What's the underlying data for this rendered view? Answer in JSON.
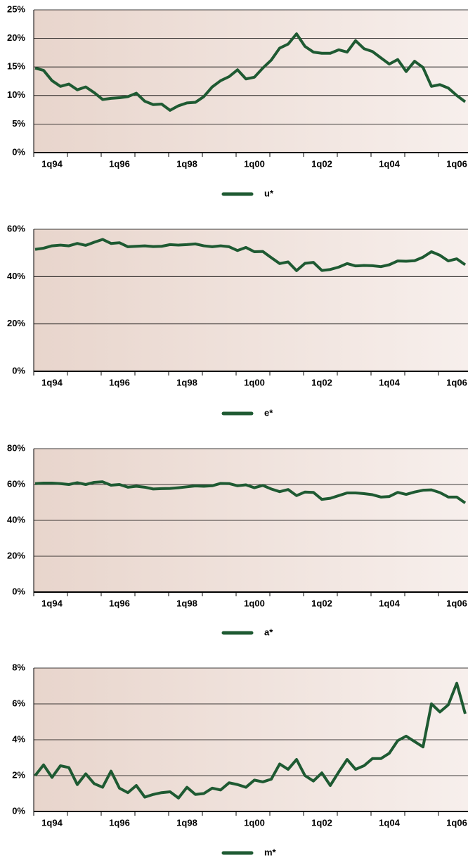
{
  "chart_data": [
    {
      "type": "line",
      "categories": [
        null,
        null,
        "1q94",
        null,
        null,
        null,
        null,
        null,
        null,
        null,
        "1q96",
        null,
        null,
        null,
        null,
        null,
        null,
        null,
        "1q98",
        null,
        null,
        null,
        null,
        null,
        null,
        null,
        "1q00",
        null,
        null,
        null,
        null,
        null,
        null,
        null,
        "1q02",
        null,
        null,
        null,
        null,
        null,
        null,
        null,
        "1q04",
        null,
        null,
        null,
        null,
        null,
        null,
        null,
        "1q06",
        null
      ],
      "series": [
        {
          "name": "u*",
          "color": "#1e5a32",
          "values": [
            14.8,
            14.4,
            12.6,
            11.6,
            12.0,
            11.0,
            11.5,
            10.5,
            9.3,
            9.5,
            9.6,
            9.8,
            10.4,
            9.0,
            8.4,
            8.5,
            7.4,
            8.2,
            8.7,
            8.8,
            9.8,
            11.5,
            12.6,
            13.3,
            14.5,
            12.9,
            13.2,
            14.8,
            16.2,
            18.3,
            19.0,
            20.8,
            18.6,
            17.6,
            17.4,
            17.4,
            18.0,
            17.6,
            19.6,
            18.2,
            17.7,
            16.6,
            15.5,
            16.3,
            14.2,
            16.0,
            14.9,
            11.6,
            11.9,
            11.3,
            10.0,
            8.9
          ]
        }
      ],
      "ylim": [
        0,
        25
      ],
      "yticks": [
        {
          "value": 0,
          "label": "0%"
        },
        {
          "value": 5,
          "label": "5%"
        },
        {
          "value": 10,
          "label": "10%"
        },
        {
          "value": 15,
          "label": "15%"
        },
        {
          "value": 20,
          "label": "20%"
        },
        {
          "value": 25,
          "label": "25%"
        }
      ],
      "grid": true
    },
    {
      "type": "line",
      "categories": [
        null,
        null,
        "1q94",
        null,
        null,
        null,
        null,
        null,
        null,
        null,
        "1q96",
        null,
        null,
        null,
        null,
        null,
        null,
        null,
        "1q98",
        null,
        null,
        null,
        null,
        null,
        null,
        null,
        "1q00",
        null,
        null,
        null,
        null,
        null,
        null,
        null,
        "1q02",
        null,
        null,
        null,
        null,
        null,
        null,
        null,
        "1q04",
        null,
        null,
        null,
        null,
        null,
        null,
        null,
        "1q06",
        null
      ],
      "series": [
        {
          "name": "e*",
          "color": "#1e5a32",
          "values": [
            51.5,
            52,
            53,
            53.3,
            53,
            54,
            53.2,
            54.5,
            55.7,
            54,
            54.3,
            52.6,
            52.8,
            53,
            52.7,
            52.8,
            53.5,
            53.3,
            53.5,
            53.8,
            53,
            52.6,
            53,
            52.6,
            51,
            52.3,
            50.5,
            50.6,
            48,
            45.5,
            46.2,
            42.5,
            45.6,
            46,
            42.6,
            43,
            44,
            45.5,
            44.5,
            44.7,
            44.6,
            44.2,
            45,
            46.6,
            46.5,
            46.7,
            48.2,
            50.5,
            49,
            46.6,
            47.5,
            45
          ]
        }
      ],
      "ylim": [
        0,
        60
      ],
      "yticks": [
        {
          "value": 0,
          "label": "0%"
        },
        {
          "value": 20,
          "label": "20%"
        },
        {
          "value": 40,
          "label": "40%"
        },
        {
          "value": 60,
          "label": "60%"
        }
      ],
      "grid": true
    },
    {
      "type": "line",
      "categories": [
        null,
        null,
        "1q94",
        null,
        null,
        null,
        null,
        null,
        null,
        null,
        "1q96",
        null,
        null,
        null,
        null,
        null,
        null,
        null,
        "1q98",
        null,
        null,
        null,
        null,
        null,
        null,
        null,
        "1q00",
        null,
        null,
        null,
        null,
        null,
        null,
        null,
        "1q02",
        null,
        null,
        null,
        null,
        null,
        null,
        null,
        "1q04",
        null,
        null,
        null,
        null,
        null,
        null,
        null,
        "1q06",
        null
      ],
      "series": [
        {
          "name": "a*",
          "color": "#1e5a32",
          "values": [
            60.5,
            60.8,
            60.8,
            60.5,
            60,
            61,
            60,
            61.2,
            61.5,
            59.6,
            60,
            58.5,
            59,
            58.5,
            57.5,
            57.7,
            57.8,
            58.2,
            58.7,
            59.2,
            59,
            59.3,
            60.6,
            60.5,
            59.3,
            59.8,
            58.2,
            59.5,
            57.5,
            56,
            57.2,
            53.8,
            55.8,
            55.6,
            51.7,
            52.3,
            53.8,
            55.3,
            55.3,
            54.9,
            54.3,
            53,
            53.3,
            55.6,
            54.5,
            55.8,
            56.8,
            57,
            55.5,
            53,
            53,
            49.7
          ]
        }
      ],
      "ylim": [
        0,
        80
      ],
      "yticks": [
        {
          "value": 0,
          "label": "0%"
        },
        {
          "value": 20,
          "label": "20%"
        },
        {
          "value": 40,
          "label": "40%"
        },
        {
          "value": 60,
          "label": "60%"
        },
        {
          "value": 80,
          "label": "80%"
        }
      ],
      "grid": true
    },
    {
      "type": "line",
      "categories": [
        null,
        null,
        "1q94",
        null,
        null,
        null,
        null,
        null,
        null,
        null,
        "1q96",
        null,
        null,
        null,
        null,
        null,
        null,
        null,
        "1q98",
        null,
        null,
        null,
        null,
        null,
        null,
        null,
        "1q00",
        null,
        null,
        null,
        null,
        null,
        null,
        null,
        "1q02",
        null,
        null,
        null,
        null,
        null,
        null,
        null,
        "1q04",
        null,
        null,
        null,
        null,
        null,
        null,
        null,
        "1q06",
        null
      ],
      "series": [
        {
          "name": "m*",
          "color": "#1e5a32",
          "values": [
            2.0,
            2.6,
            1.9,
            2.55,
            2.45,
            1.5,
            2.1,
            1.55,
            1.35,
            2.25,
            1.3,
            1.05,
            1.45,
            0.8,
            0.95,
            1.05,
            1.1,
            0.75,
            1.35,
            0.95,
            1.0,
            1.3,
            1.2,
            1.6,
            1.5,
            1.35,
            1.75,
            1.65,
            1.8,
            2.65,
            2.35,
            2.9,
            2.0,
            1.7,
            2.15,
            1.45,
            2.2,
            2.9,
            2.35,
            2.55,
            2.95,
            2.95,
            3.25,
            3.95,
            4.2,
            3.9,
            3.6,
            6.0,
            5.55,
            5.95,
            7.15,
            5.45
          ]
        }
      ],
      "ylim": [
        0,
        8
      ],
      "yticks": [
        {
          "value": 0,
          "label": "0%"
        },
        {
          "value": 2,
          "label": "2%"
        },
        {
          "value": 4,
          "label": "4%"
        },
        {
          "value": 6,
          "label": "6%"
        },
        {
          "value": 8,
          "label": "8%"
        }
      ],
      "grid": true
    }
  ]
}
